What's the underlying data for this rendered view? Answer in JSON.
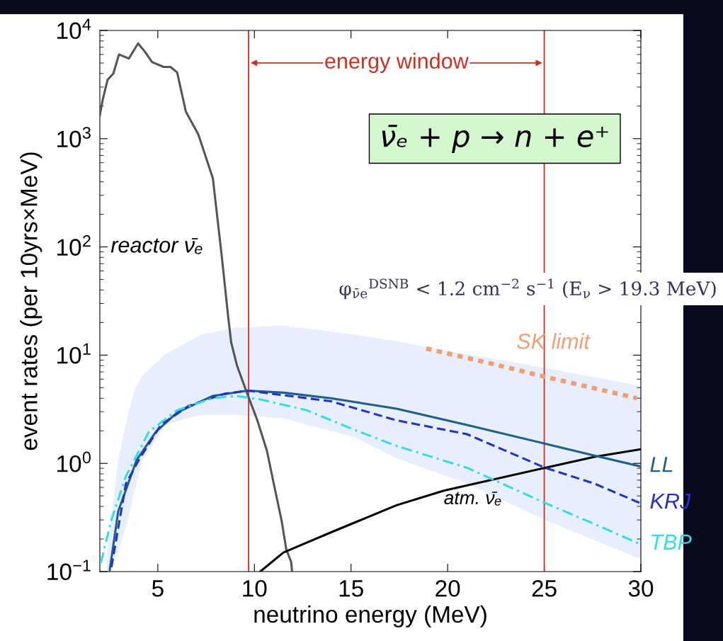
{
  "chart_data": {
    "type": "line",
    "xlabel": "neutrino energy (MeV)",
    "ylabel": "event rates (per 10yrs×MeV)",
    "log": "y",
    "xlim": [
      2,
      30
    ],
    "xticks": [
      5,
      10,
      15,
      20,
      25,
      30
    ],
    "ylim": [
      0.1,
      10000
    ],
    "yticks": [
      {
        "value": 0.1,
        "label": "10$^{−1}$"
      },
      {
        "value": 1,
        "label": "10$^{0}$"
      },
      {
        "value": 10,
        "label": "10$^{1}$"
      },
      {
        "value": 100,
        "label": "10$^{2}$"
      },
      {
        "value": 1000,
        "label": "10$^{3}$"
      },
      {
        "value": 10000,
        "label": "10$^{4}$"
      }
    ],
    "grid": false,
    "legend": false,
    "series": [
      {
        "type": "area",
        "color": "#e6effb",
        "x": [
          2.35,
          2.95,
          3.45,
          3.8,
          4.2,
          5.4,
          7.2,
          9.05,
          11.5,
          15.15,
          17.35,
          21.0,
          25.05,
          30.0
        ],
        "values": [
          null,
          null,
          null,
          null,
          null,
          null,
          null,
          null,
          null,
          null,
          null,
          null,
          null,
          null
        ],
        "upper": [
          0.14,
          1.07,
          2.8,
          4.8,
          6.5,
          10.2,
          15.4,
          18,
          18.7,
          15.5,
          13.4,
          10.2,
          7.6,
          5.2
        ],
        "lower": [
          0.1,
          0.15,
          0.3,
          0.55,
          1.07,
          2.3,
          2.8,
          2.8,
          2.6,
          1.75,
          1.12,
          0.65,
          0.3,
          0.13
        ]
      },
      {
        "color": "#555555",
        "line_style": "solid",
        "x": [
          2.0,
          2.15,
          2.4,
          2.7,
          2.99,
          3.5,
          3.98,
          4.35,
          4.7,
          5.3,
          5.65,
          6.0,
          6.45,
          7.1,
          7.85,
          8.0,
          8.3,
          8.65,
          8.8,
          9.1,
          9.55,
          10.15,
          10.65,
          11.0,
          11.4,
          11.65,
          11.9,
          11.95
        ],
        "values": [
          1640,
          2300,
          3500,
          4000,
          6000,
          5500,
          7600,
          6300,
          5100,
          4600,
          4600,
          4100,
          1780,
          1090,
          430,
          250,
          85,
          22,
          13,
          8,
          4.8,
          2.5,
          1.3,
          0.65,
          0.3,
          0.16,
          0.123,
          0.1
        ]
      },
      {
        "color": "#000000",
        "line_style": "solid",
        "x": [
          10.3,
          11.5,
          13.95,
          17.35,
          19.8,
          25.05,
          27.6,
          30.0
        ],
        "values": [
          0.1,
          0.15,
          0.23,
          0.41,
          0.56,
          0.91,
          1.15,
          1.35
        ]
      },
      {
        "color": "#f0a070",
        "line_style": "dotted",
        "x": [
          18.9,
          22.2,
          25.05,
          29.8
        ],
        "values": [
          11.5,
          8.4,
          6.3,
          4.0
        ]
      },
      {
        "name": "LL",
        "color": "#1f5f8b",
        "line_style": "solid",
        "x": [
          2.5,
          2.95,
          3.9,
          4.9,
          6.0,
          7.85,
          9.65,
          11.5,
          13.95,
          17.35,
          21.0,
          25.05,
          27.6,
          29.95
        ],
        "values": [
          0.1,
          0.36,
          1.07,
          1.96,
          2.95,
          4.2,
          4.7,
          4.5,
          4.0,
          3.2,
          2.26,
          1.52,
          1.18,
          0.94
        ]
      },
      {
        "name": "KRJ",
        "color": "#2233cc",
        "line_style": "dashed",
        "x": [
          2.6,
          3.35,
          4.05,
          5.15,
          6.6,
          8.45,
          9.65,
          13.95,
          17.35,
          21.0,
          25.05,
          27.6,
          29.95
        ],
        "values": [
          0.11,
          0.65,
          1.1,
          2.26,
          3.4,
          4.4,
          4.7,
          3.75,
          2.5,
          1.86,
          0.91,
          0.65,
          0.43
        ]
      },
      {
        "name": "TBP",
        "color": "#33dde0",
        "line_style": "dashdot",
        "x": [
          2.05,
          2.6,
          3.35,
          4.54,
          6.0,
          7.85,
          9.05,
          10.3,
          12.7,
          15.15,
          17.35,
          21.0,
          25.05,
          27.6,
          29.95
        ],
        "values": [
          0.12,
          0.3,
          0.76,
          1.96,
          3.1,
          4.0,
          4.2,
          3.9,
          3.1,
          2.05,
          1.45,
          0.91,
          0.43,
          0.275,
          0.18
        ]
      }
    ],
    "ref_lines": [
      {
        "axis": "x",
        "value": 9.7,
        "color": "#d03020"
      },
      {
        "axis": "x",
        "value": 25,
        "color": "#d03020"
      }
    ],
    "annotations": [
      "energy window",
      "ν̄ₑ + p → n + e⁺",
      "reactor ν̄ₑ",
      {
        "text": "atm. ν̄ₑ",
        "x": 19.8,
        "y": 0.56
      },
      {
        "text": "SK limit",
        "x": 25.05,
        "y": 6.3
      },
      "φ$_{ν̄e}$$^{DSNB}$ < 1.2 cm$^{−2}$ s$^{−1}$ (E$_{ν}$ > 19.3 MeV)"
    ]
  }
}
